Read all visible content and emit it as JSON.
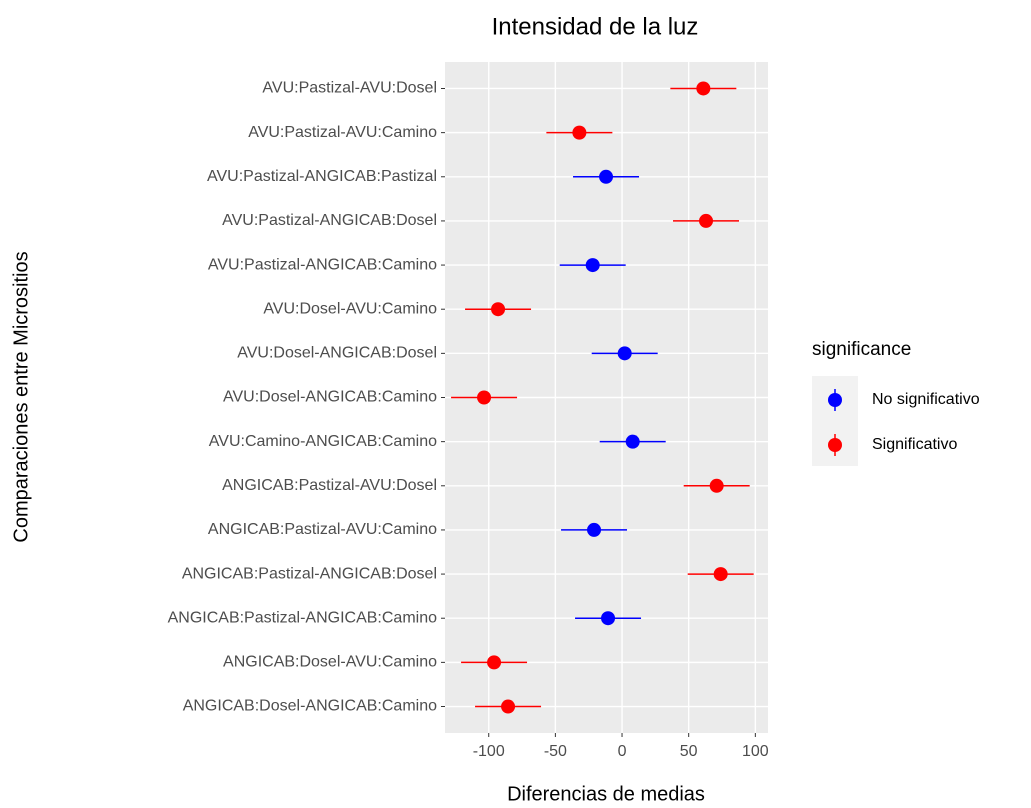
{
  "chart_data": {
    "type": "pointrange",
    "title": "Intensidad de la luz",
    "xlabel": "Diferencias de medias",
    "ylabel": "Comparaciones entre Micrositios",
    "legend_title": "significance",
    "categories": [
      "AVU:Pastizal-AVU:Dosel",
      "AVU:Pastizal-AVU:Camino",
      "AVU:Pastizal-ANGICAB:Pastizal",
      "AVU:Pastizal-ANGICAB:Dosel",
      "AVU:Pastizal-ANGICAB:Camino",
      "AVU:Dosel-AVU:Camino",
      "AVU:Dosel-ANGICAB:Dosel",
      "AVU:Dosel-ANGICAB:Camino",
      "AVU:Camino-ANGICAB:Camino",
      "ANGICAB:Pastizal-AVU:Dosel",
      "ANGICAB:Pastizal-AVU:Camino",
      "ANGICAB:Pastizal-ANGICAB:Dosel",
      "ANGICAB:Pastizal-ANGICAB:Camino",
      "ANGICAB:Dosel-AVU:Camino",
      "ANGICAB:Dosel-ANGICAB:Camino"
    ],
    "series": [
      {
        "name": "No significativo",
        "color": "#0000ff",
        "values": [
          null,
          null,
          -12,
          null,
          -22,
          null,
          2,
          null,
          8,
          null,
          -21,
          null,
          -10.5,
          null,
          null
        ],
        "lower": [
          null,
          null,
          -36.75,
          null,
          -46.75,
          null,
          -22.75,
          null,
          -16.75,
          null,
          -45.75,
          null,
          -35.25,
          null,
          null
        ],
        "upper": [
          null,
          null,
          12.75,
          null,
          2.75,
          null,
          26.75,
          null,
          32.75,
          null,
          3.75,
          null,
          14.25,
          null,
          null
        ]
      },
      {
        "name": "Significativo",
        "color": "#ff0000",
        "values": [
          61,
          -32,
          null,
          63,
          null,
          -93,
          null,
          -103.5,
          null,
          71,
          null,
          74,
          null,
          -96,
          -85.5
        ],
        "lower": [
          36.25,
          -56.75,
          null,
          38.25,
          null,
          -117.75,
          null,
          -128.25,
          null,
          46.25,
          null,
          49.25,
          null,
          -120.75,
          -110.25
        ],
        "upper": [
          85.75,
          -7.25,
          null,
          87.75,
          null,
          -68.25,
          null,
          -78.75,
          null,
          95.75,
          null,
          98.75,
          null,
          -71.25,
          -60.75
        ]
      }
    ],
    "xlim": [
      -132.8,
      109.5
    ],
    "xticks": [
      -100,
      -50,
      0,
      50,
      100
    ],
    "grid": true
  }
}
